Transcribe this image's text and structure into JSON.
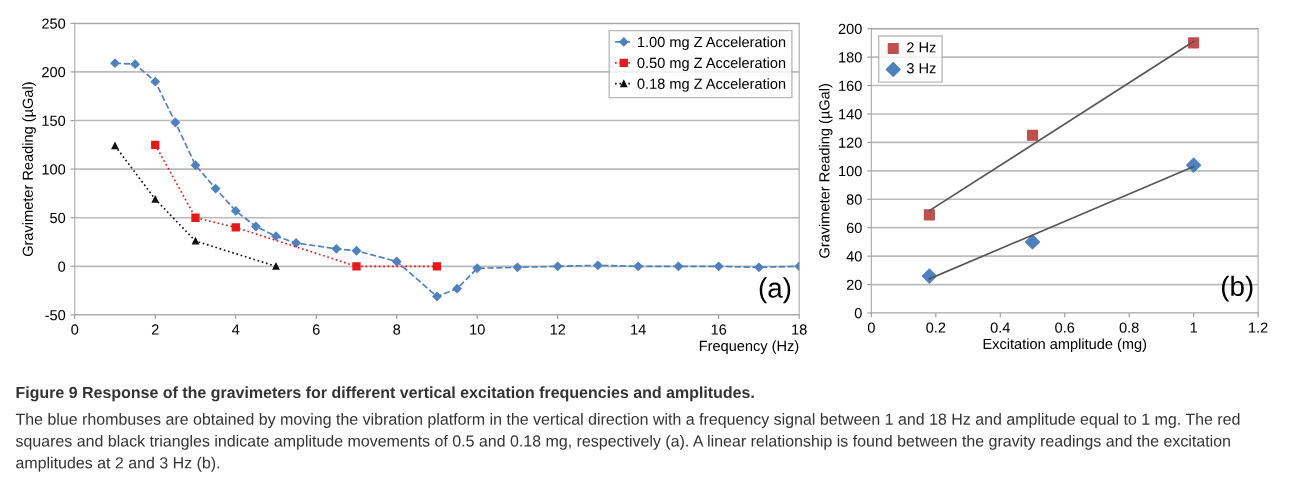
{
  "chart_data": [
    {
      "type": "line",
      "xlabel": "Frequency (Hz)",
      "ylabel": "Gravimeter Reading (µGal)",
      "xlim": [
        0,
        18
      ],
      "xticks": [
        0,
        2,
        4,
        6,
        8,
        10,
        12,
        14,
        16,
        18
      ],
      "ylim": [
        -50,
        250
      ],
      "yticks": [
        -50,
        0,
        50,
        100,
        150,
        200,
        250
      ],
      "grid": "y",
      "legend": "top right",
      "series": [
        {
          "name": "1.00 mg Z Acceleration",
          "color": "#4f81bd",
          "marker": "diamond",
          "line_style": "dashed",
          "x": [
            1,
            1.5,
            2,
            2.5,
            3,
            3.5,
            4,
            4.5,
            5,
            5.5,
            6.5,
            7,
            8,
            9,
            9.5,
            10,
            11,
            12,
            13,
            14,
            15,
            16,
            17,
            18
          ],
          "values": [
            209,
            208,
            190,
            148,
            104,
            80,
            57,
            41,
            31,
            24,
            18,
            16,
            5,
            -31,
            -23,
            -2,
            -1,
            0,
            1,
            0,
            0,
            0,
            -1,
            0
          ]
        },
        {
          "name": "0.50 mg Z Acceleration",
          "color": "#e31a1c",
          "marker": "square",
          "line_style": "dotted",
          "x": [
            2,
            3,
            4,
            7,
            9
          ],
          "values": [
            125,
            50,
            40,
            0,
            0
          ]
        },
        {
          "name": "0.18 mg Z Acceleration",
          "color": "#111111",
          "marker": "triangle",
          "line_style": "dotted",
          "x": [
            1,
            2,
            3,
            5
          ],
          "values": [
            124,
            69,
            26,
            0
          ]
        }
      ],
      "annotations": [
        "(a)",
        "Figure 9 Response of the gravimeters for different vertical excitation frequencies and amplitudes.",
        "The blue rhombuses are obtained by moving the vibration platform in the vertical direction with a frequency signal between 1 and 18 Hz and amplitude equal to 1 mg. The red squares and black triangles indicate amplitude movements of 0.5 and 0.18 mg, respectively (a). A linear relationship is found between the gravity readings and the excitation amplitudes at 2 and 3 Hz (b)."
      ]
    },
    {
      "type": "scatter",
      "xlabel": "Excitation amplitude (mg)",
      "ylabel": "Gravimeter Reading (µGal)",
      "xlim": [
        0,
        1.2
      ],
      "xticks": [
        0,
        0.2,
        0.4,
        0.6,
        0.8,
        1,
        1.2
      ],
      "ylim": [
        0,
        200
      ],
      "yticks": [
        0,
        20,
        40,
        60,
        80,
        100,
        120,
        140,
        160,
        180,
        200
      ],
      "grid": "y",
      "legend": "top left",
      "series": [
        {
          "name": "2 Hz",
          "color": "#c0504d",
          "marker": "square",
          "x": [
            0.18,
            0.5,
            1
          ],
          "values": [
            69,
            125,
            190
          ]
        },
        {
          "name": "3 Hz",
          "color": "#4f81bd",
          "marker": "diamond",
          "x": [
            0.18,
            0.5,
            1
          ],
          "values": [
            26,
            50,
            104
          ]
        },
        {
          "type": "line",
          "color": "#555555",
          "marker": "none",
          "line_style": "solid",
          "x": [
            0.18,
            1
          ],
          "values": [
            72,
            191
          ]
        },
        {
          "type": "line",
          "color": "#555555",
          "marker": "none",
          "line_style": "solid",
          "x": [
            0.18,
            1
          ],
          "values": [
            24,
            103
          ]
        }
      ],
      "annotations": [
        "(b)"
      ]
    }
  ]
}
